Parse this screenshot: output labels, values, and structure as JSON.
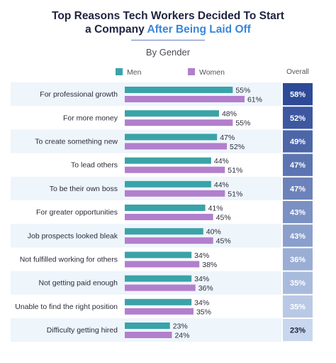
{
  "title": {
    "line1": "Top Reasons Tech Workers Decided To Start",
    "line2_plain": "a Company ",
    "line2_accent": "After Being Laid Off"
  },
  "subtitle": "By Gender",
  "overall_header": "Overall",
  "colors": {
    "men": "#3aa3a8",
    "women": "#b27fcd",
    "row_band": "#eef5fb",
    "overall_dark": "#2e4a97",
    "overall_light": "#c8d7ee"
  },
  "chart_data": {
    "type": "bar",
    "orientation": "horizontal",
    "categories": [
      "For professional growth",
      "For more money",
      "To create something new",
      "To lead others",
      "To be their own boss",
      "For greater opportunities",
      "Job prospects looked bleak",
      "Not fulfilled working for others",
      "Not getting paid enough",
      "Unable to find the right position",
      "Difficulty getting hired"
    ],
    "series": [
      {
        "name": "Men",
        "values": [
          55,
          48,
          47,
          44,
          44,
          41,
          40,
          34,
          34,
          34,
          23
        ]
      },
      {
        "name": "Women",
        "values": [
          61,
          55,
          52,
          51,
          51,
          45,
          45,
          38,
          36,
          35,
          24
        ]
      }
    ],
    "overall": [
      58,
      52,
      49,
      47,
      47,
      43,
      43,
      36,
      35,
      35,
      23
    ],
    "value_suffix": "%",
    "xlim": [
      0,
      100
    ],
    "legend_position": "top",
    "grid": false
  }
}
